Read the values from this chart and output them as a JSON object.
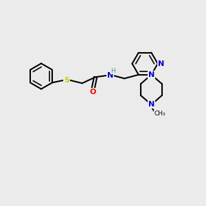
{
  "background_color": "#ebebeb",
  "atom_colors": {
    "C": "#000000",
    "N": "#0000cc",
    "O": "#ff0000",
    "S": "#cccc00",
    "H": "#4a9090"
  },
  "figsize": [
    3.0,
    3.0
  ],
  "dpi": 100,
  "xlim": [
    0,
    10
  ],
  "ylim": [
    0,
    10
  ]
}
